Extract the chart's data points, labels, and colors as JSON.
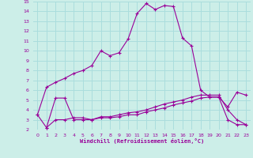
{
  "xlabel": "Windchill (Refroidissement éolien,°C)",
  "background_color": "#cceee8",
  "grid_color": "#aadddd",
  "line_color": "#990099",
  "xlim": [
    -0.5,
    23.5
  ],
  "ylim": [
    2,
    15
  ],
  "yticks": [
    2,
    3,
    4,
    5,
    6,
    7,
    8,
    9,
    10,
    11,
    12,
    13,
    14,
    15
  ],
  "xticks": [
    0,
    1,
    2,
    3,
    4,
    5,
    6,
    7,
    8,
    9,
    10,
    11,
    12,
    13,
    14,
    15,
    16,
    17,
    18,
    19,
    20,
    21,
    22,
    23
  ],
  "line1_x": [
    0,
    1,
    2,
    3,
    4,
    5,
    6,
    7,
    8,
    9,
    10,
    11,
    12,
    13,
    14,
    15,
    16,
    17,
    18,
    19,
    20,
    21,
    22,
    23
  ],
  "line1_y": [
    3.5,
    6.3,
    6.8,
    7.2,
    7.7,
    8.0,
    8.5,
    10.0,
    9.5,
    9.8,
    11.2,
    13.8,
    14.8,
    14.2,
    14.6,
    14.5,
    11.3,
    10.5,
    6.0,
    5.3,
    5.3,
    4.3,
    5.8,
    5.5
  ],
  "line2_x": [
    1,
    2,
    3,
    4,
    5,
    6,
    7,
    8,
    9,
    10,
    11,
    12,
    13,
    14,
    15,
    16,
    17,
    18,
    19,
    20,
    21,
    22,
    23
  ],
  "line2_y": [
    2.2,
    5.2,
    5.2,
    3.0,
    3.0,
    3.0,
    3.2,
    3.2,
    3.3,
    3.5,
    3.5,
    3.8,
    4.0,
    4.2,
    4.5,
    4.7,
    4.9,
    5.2,
    5.3,
    5.3,
    3.0,
    2.5,
    2.5
  ],
  "line3_x": [
    0,
    1,
    2,
    3,
    4,
    5,
    6,
    7,
    8,
    9,
    10,
    11,
    12,
    13,
    14,
    15,
    16,
    17,
    18,
    19,
    20,
    21,
    22,
    23
  ],
  "line3_y": [
    3.5,
    2.2,
    3.0,
    3.0,
    3.2,
    3.2,
    3.0,
    3.3,
    3.3,
    3.5,
    3.7,
    3.8,
    4.0,
    4.3,
    4.6,
    4.8,
    5.0,
    5.3,
    5.5,
    5.5,
    5.5,
    4.0,
    3.0,
    2.5
  ]
}
